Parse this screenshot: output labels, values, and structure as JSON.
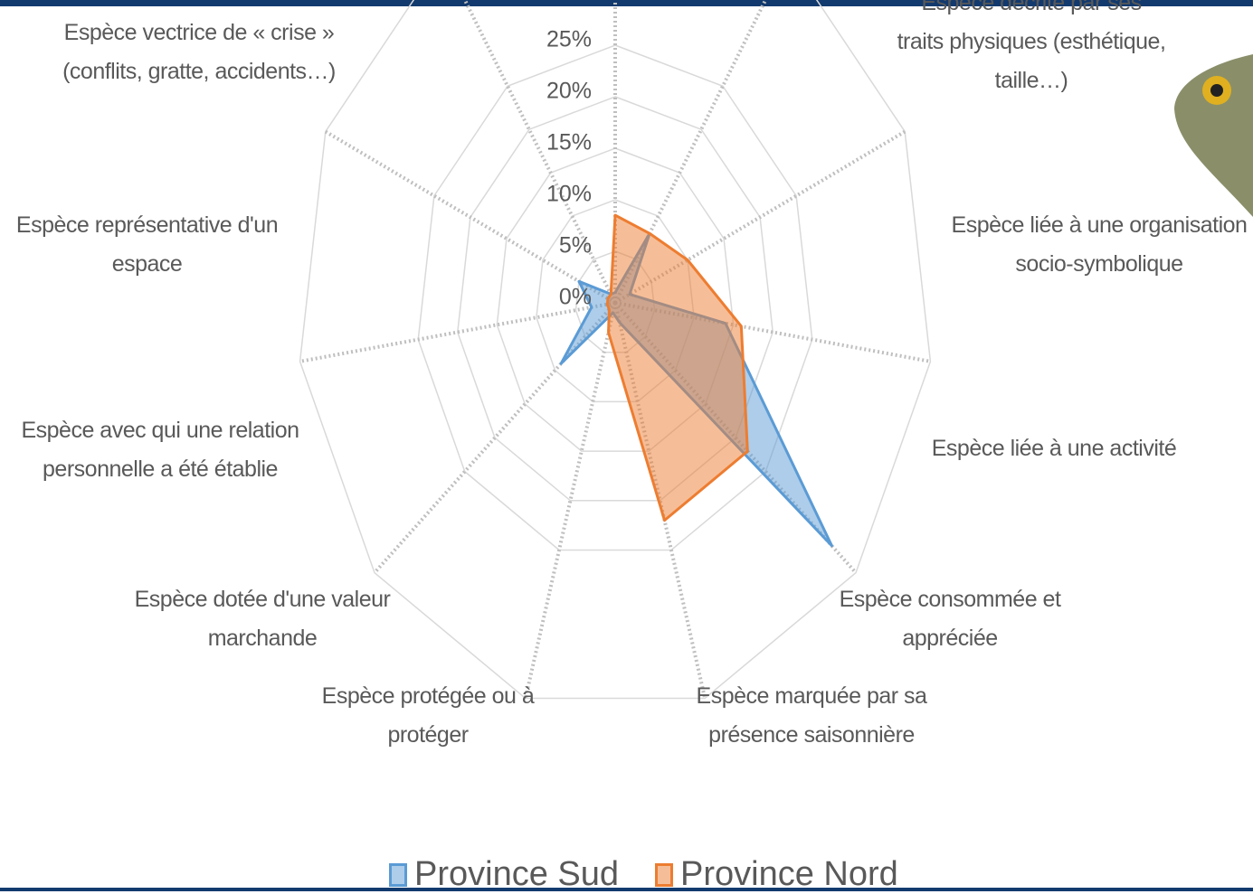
{
  "chart_data": {
    "type": "radar",
    "categories": [
      null,
      "Espèce décrite par ses traits physiques (esthétique, taille…)",
      "Espèce liée à une organisation socio-symbolique",
      "Espèce liée à une activité",
      "Espèce consommée et appréciée",
      "Espèce marquée par sa présence saisonnière",
      "Espèce protégée ou à protéger",
      "Espèce dotée d'une valeur marchande",
      "Espèce avec qui une relation personnelle a été établie",
      "Espèce représentative d'un espace",
      "Espèce vectrice de « crise » (conflits, gratte, accidents…)"
    ],
    "series": [
      {
        "name": "Province Sud",
        "color": "#5b9bd5",
        "values": [
          1,
          8,
          2,
          14,
          36,
          2,
          1,
          9,
          3,
          5,
          1
        ]
      },
      {
        "name": "Province Nord",
        "color": "#ed7d31",
        "values": [
          8.5,
          8,
          10,
          16,
          22,
          22,
          3,
          1,
          1,
          1,
          1
        ]
      }
    ],
    "ylim": [
      0,
      40
    ],
    "yticks": [
      {
        "value": 0,
        "label": "0%"
      },
      {
        "value": 5,
        "label": "5%"
      },
      {
        "value": 10,
        "label": "10%"
      },
      {
        "value": 15,
        "label": "15%"
      },
      {
        "value": 20,
        "label": "20%"
      },
      {
        "value": 25,
        "label": "25%"
      }
    ],
    "legend": "bottom"
  }
}
